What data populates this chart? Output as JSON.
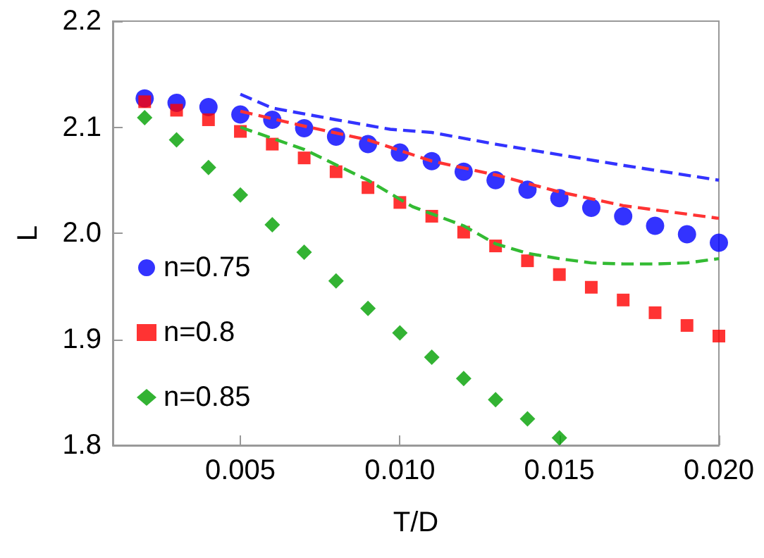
{
  "chart_data": {
    "type": "scatter",
    "xlabel": "T/D",
    "ylabel": "L",
    "xlim": [
      0.001,
      0.02
    ],
    "ylim": [
      1.8,
      2.2
    ],
    "xticks": [
      0.005,
      {
        "value": 0.01,
        "label": "0.010"
      },
      0.015,
      {
        "value": 0.02,
        "label": "0.020"
      }
    ],
    "yticks": [
      1.8,
      1.9,
      {
        "value": 2.0,
        "label": "2.0"
      },
      2.1,
      2.2
    ],
    "legend": "left",
    "x": [
      0.002,
      0.003,
      0.004,
      0.005,
      0.006,
      0.007,
      0.008,
      0.009,
      0.01,
      0.011,
      0.012,
      0.013,
      0.014,
      0.015,
      0.016,
      0.017,
      0.018,
      0.019,
      0.02
    ],
    "series": [
      {
        "name": "n=0.75",
        "color": "#0000ff",
        "marker": "circle",
        "values": [
          2.127,
          2.123,
          2.119,
          2.112,
          2.107,
          2.099,
          2.091,
          2.084,
          2.076,
          2.068,
          2.058,
          2.05,
          2.041,
          2.033,
          2.024,
          2.016,
          2.007,
          1.999,
          1.991
        ]
      },
      {
        "name": "n=0.8",
        "color": "#ff0000",
        "marker": "square",
        "values": [
          2.124,
          2.116,
          2.107,
          2.096,
          2.084,
          2.071,
          2.058,
          2.043,
          2.029,
          2.016,
          2.001,
          1.988,
          1.974,
          1.961,
          1.949,
          1.937,
          1.925,
          1.913,
          1.903
        ]
      },
      {
        "name": "n=0.85",
        "color": "#00a000",
        "marker": "diamond",
        "values": [
          2.109,
          2.088,
          2.062,
          2.036,
          2.008,
          1.982,
          1.955,
          1.929,
          1.906,
          1.883,
          1.863,
          1.843,
          1.825,
          1.807,
          null,
          null,
          null,
          null,
          null
        ]
      },
      {
        "type": "line",
        "color": "#3333ff",
        "line_style": "dashed",
        "x": [
          0.005,
          0.006,
          0.008,
          0.0097,
          0.011,
          0.013,
          0.015,
          0.017,
          0.02
        ],
        "values": [
          2.131,
          2.118,
          2.107,
          2.098,
          2.095,
          2.084,
          2.074,
          2.064,
          2.05
        ]
      },
      {
        "type": "line",
        "color": "#ff3333",
        "line_style": "dashed",
        "x": [
          0.005,
          0.007,
          0.009,
          0.011,
          0.013,
          0.015,
          0.017,
          0.02
        ],
        "values": [
          2.115,
          2.101,
          2.088,
          2.068,
          2.055,
          2.039,
          2.026,
          2.014
        ]
      },
      {
        "type": "line",
        "color": "#33bb33",
        "line_style": "dashed",
        "x": [
          0.005,
          0.007,
          0.009,
          0.0104,
          0.012,
          0.013,
          0.014,
          0.015,
          0.016,
          0.017,
          0.018,
          0.019,
          0.02
        ],
        "values": [
          2.1,
          2.079,
          2.05,
          2.025,
          2.007,
          1.99,
          1.981,
          1.976,
          1.972,
          1.971,
          1.971,
          1.972,
          1.976
        ]
      }
    ]
  }
}
